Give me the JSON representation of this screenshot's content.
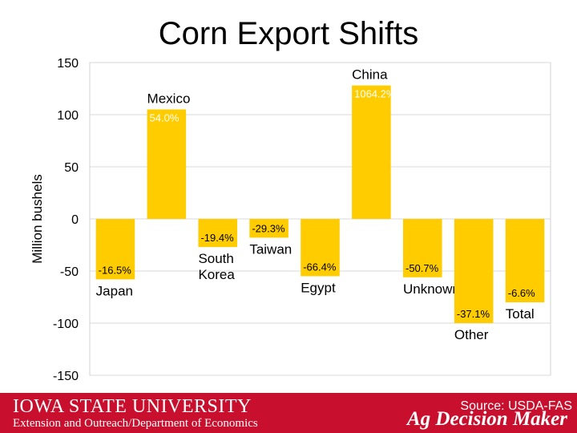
{
  "chart_data": {
    "type": "bar",
    "title": "Corn Export Shifts",
    "ylabel": "Million bushels",
    "xlabel": "",
    "ylim": [
      -150,
      150
    ],
    "yticks": [
      150,
      100,
      50,
      0,
      -50,
      -100,
      -150
    ],
    "grid": true,
    "categories": [
      "Japan",
      "Mexico",
      "South Korea",
      "Taiwan",
      "Egypt",
      "China",
      "Unknown",
      "Other",
      "Total"
    ],
    "values": [
      -58,
      105,
      -27,
      -18,
      -55,
      128,
      -56,
      -100,
      -80
    ],
    "data_labels": [
      "-16.5%",
      "54.0%",
      "-19.4%",
      "-29.3%",
      "-66.4%",
      "1064.2%",
      "-50.7%",
      "-37.1%",
      "-6.6%"
    ],
    "bar_color": "#ffcc00"
  },
  "footer": {
    "university": "IOWA STATE UNIVERSITY",
    "department": "Extension and Outreach/Department of Economics",
    "brand": "Ag Decision Maker",
    "source": "Source: USDA-FAS",
    "background_color": "#c8102e"
  }
}
